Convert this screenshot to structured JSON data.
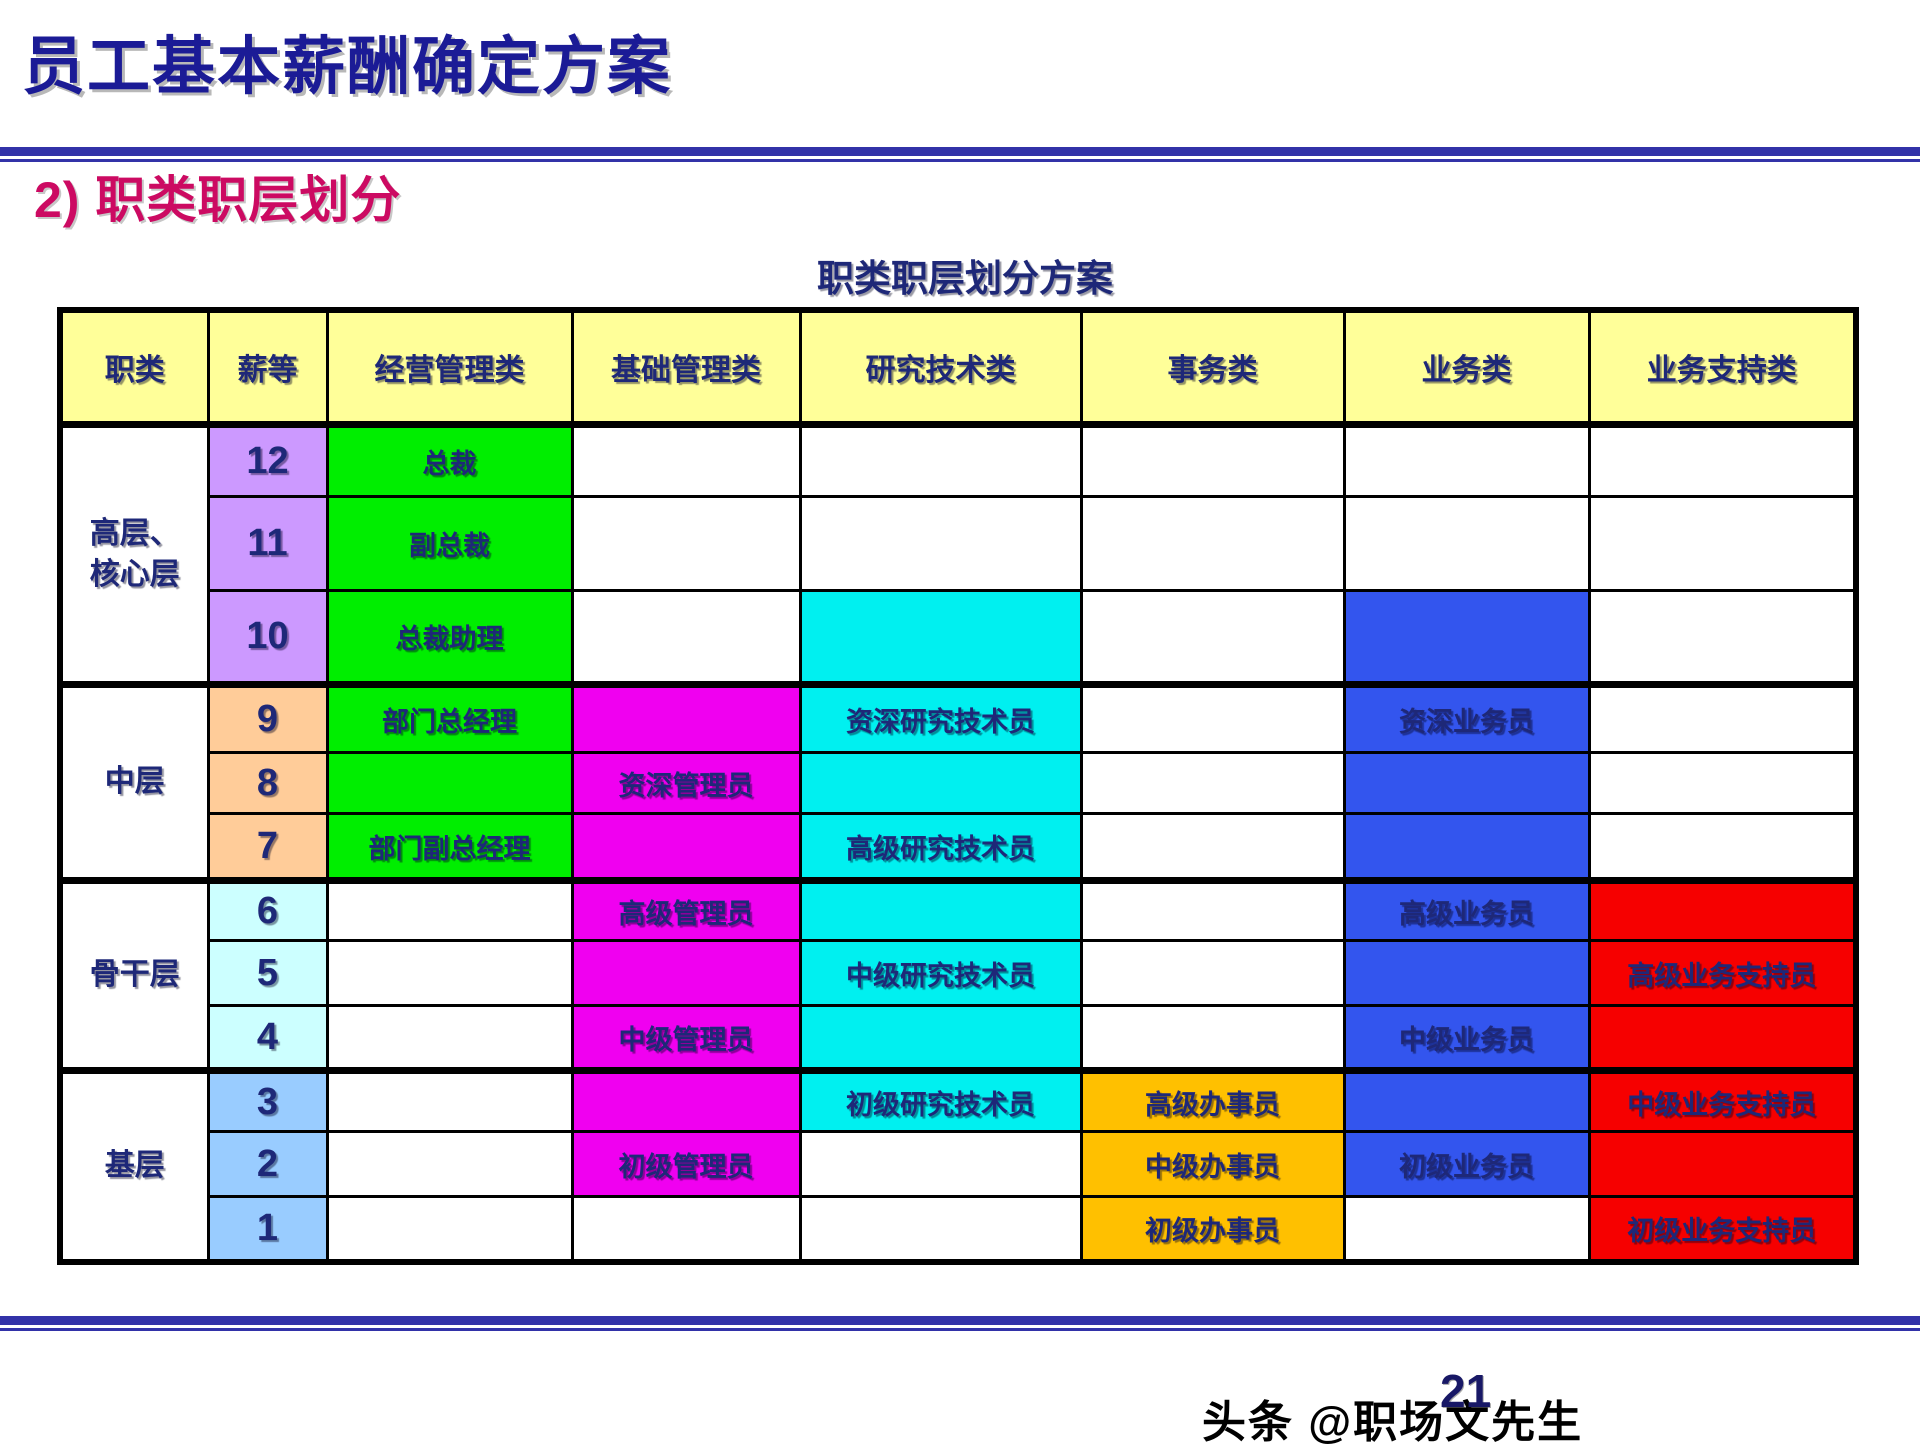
{
  "slide": {
    "title": "员工基本薪酬确定方案",
    "section_title": "2) 职类职层划分",
    "table_title": "职类职层划分方案",
    "page_number": "21",
    "watermark": "头条 @职场文先生"
  },
  "colors": {
    "title_navy": "#1B1B96",
    "section_crimson": "#CC0A62",
    "text_navy": "#1E2878",
    "line_navy": "#3232A8",
    "header_yellow": "#FFFF99",
    "grade_purple": "#CC99FF",
    "grade_peach": "#FFCC99",
    "grade_lightcyan": "#CCFFFF",
    "grade_lightblue": "#99CCFF",
    "green": "#00EE00",
    "magenta": "#F000F0",
    "cyan": "#00F0F0",
    "orange": "#FFC000",
    "blue": "#3355EE",
    "red": "#F60000",
    "white": "#FFFFFF",
    "watermark_black": "#000000",
    "page_number_navy": "#181866"
  },
  "table": {
    "columns": [
      {
        "key": "job-category",
        "label": "职类"
      },
      {
        "key": "salary-grade",
        "label": "薪等"
      },
      {
        "key": "mgmt",
        "label": "经营管理类"
      },
      {
        "key": "basic-mgmt",
        "label": "基础管理类"
      },
      {
        "key": "research-tech",
        "label": "研究技术类"
      },
      {
        "key": "affairs",
        "label": "事务类"
      },
      {
        "key": "business",
        "label": "业务类"
      },
      {
        "key": "business-support",
        "label": "业务支持类"
      }
    ],
    "groups": [
      {
        "id": "top-core",
        "label_lines": [
          "高层、",
          "核心层"
        ],
        "grade_bg": "grade_purple",
        "grades": [
          "12",
          "11",
          "10"
        ]
      },
      {
        "id": "middle",
        "label_lines": [
          "中层"
        ],
        "grade_bg": "grade_peach",
        "grades": [
          "9",
          "8",
          "7"
        ]
      },
      {
        "id": "backbone",
        "label_lines": [
          "骨干层"
        ],
        "grade_bg": "grade_lightcyan",
        "grades": [
          "6",
          "5",
          "4"
        ]
      },
      {
        "id": "base",
        "label_lines": [
          "基层"
        ],
        "grade_bg": "grade_lightblue",
        "grades": [
          "3",
          "2",
          "1"
        ]
      }
    ],
    "rows": [
      {
        "grade": "12",
        "cells": [
          {
            "bg": "green",
            "text": "总裁"
          },
          {
            "bg": "white",
            "text": ""
          },
          {
            "bg": "white",
            "text": ""
          },
          {
            "bg": "white",
            "text": ""
          },
          {
            "bg": "white",
            "text": ""
          },
          {
            "bg": "white",
            "text": ""
          }
        ]
      },
      {
        "grade": "11",
        "cells": [
          {
            "bg": "green",
            "text": "副总裁"
          },
          {
            "bg": "white",
            "text": ""
          },
          {
            "bg": "white",
            "text": ""
          },
          {
            "bg": "white",
            "text": ""
          },
          {
            "bg": "white",
            "text": ""
          },
          {
            "bg": "white",
            "text": ""
          }
        ]
      },
      {
        "grade": "10",
        "cells": [
          {
            "bg": "green",
            "text": "总裁助理"
          },
          {
            "bg": "white",
            "text": ""
          },
          {
            "bg": "cyan",
            "text": ""
          },
          {
            "bg": "white",
            "text": ""
          },
          {
            "bg": "blue",
            "text": ""
          },
          {
            "bg": "white",
            "text": ""
          }
        ]
      },
      {
        "grade": "9",
        "cells": [
          {
            "bg": "green",
            "text": "部门总经理"
          },
          {
            "bg": "magenta",
            "text": ""
          },
          {
            "bg": "cyan",
            "text": "资深研究技术员"
          },
          {
            "bg": "white",
            "text": ""
          },
          {
            "bg": "blue",
            "text": "资深业务员"
          },
          {
            "bg": "white",
            "text": ""
          }
        ]
      },
      {
        "grade": "8",
        "cells": [
          {
            "bg": "green",
            "text": ""
          },
          {
            "bg": "magenta",
            "text": "资深管理员"
          },
          {
            "bg": "cyan",
            "text": ""
          },
          {
            "bg": "white",
            "text": ""
          },
          {
            "bg": "blue",
            "text": ""
          },
          {
            "bg": "white",
            "text": ""
          }
        ]
      },
      {
        "grade": "7",
        "cells": [
          {
            "bg": "green",
            "text": "部门副总经理"
          },
          {
            "bg": "magenta",
            "text": ""
          },
          {
            "bg": "cyan",
            "text": "高级研究技术员"
          },
          {
            "bg": "white",
            "text": ""
          },
          {
            "bg": "blue",
            "text": ""
          },
          {
            "bg": "white",
            "text": ""
          }
        ]
      },
      {
        "grade": "6",
        "cells": [
          {
            "bg": "white",
            "text": ""
          },
          {
            "bg": "magenta",
            "text": "高级管理员"
          },
          {
            "bg": "cyan",
            "text": ""
          },
          {
            "bg": "white",
            "text": ""
          },
          {
            "bg": "blue",
            "text": "高级业务员"
          },
          {
            "bg": "red",
            "text": ""
          }
        ]
      },
      {
        "grade": "5",
        "cells": [
          {
            "bg": "white",
            "text": ""
          },
          {
            "bg": "magenta",
            "text": ""
          },
          {
            "bg": "cyan",
            "text": "中级研究技术员"
          },
          {
            "bg": "white",
            "text": ""
          },
          {
            "bg": "blue",
            "text": ""
          },
          {
            "bg": "red",
            "text": "高级业务支持员"
          }
        ]
      },
      {
        "grade": "4",
        "cells": [
          {
            "bg": "white",
            "text": ""
          },
          {
            "bg": "magenta",
            "text": "中级管理员"
          },
          {
            "bg": "cyan",
            "text": ""
          },
          {
            "bg": "white",
            "text": ""
          },
          {
            "bg": "blue",
            "text": "中级业务员"
          },
          {
            "bg": "red",
            "text": ""
          }
        ]
      },
      {
        "grade": "3",
        "cells": [
          {
            "bg": "white",
            "text": ""
          },
          {
            "bg": "magenta",
            "text": ""
          },
          {
            "bg": "cyan",
            "text": "初级研究技术员"
          },
          {
            "bg": "orange",
            "text": "高级办事员"
          },
          {
            "bg": "blue",
            "text": ""
          },
          {
            "bg": "red",
            "text": "中级业务支持员"
          }
        ]
      },
      {
        "grade": "2",
        "cells": [
          {
            "bg": "white",
            "text": ""
          },
          {
            "bg": "magenta",
            "text": "初级管理员"
          },
          {
            "bg": "white",
            "text": ""
          },
          {
            "bg": "orange",
            "text": "中级办事员"
          },
          {
            "bg": "blue",
            "text": "初级业务员"
          },
          {
            "bg": "red",
            "text": ""
          }
        ]
      },
      {
        "grade": "1",
        "cells": [
          {
            "bg": "white",
            "text": ""
          },
          {
            "bg": "white",
            "text": ""
          },
          {
            "bg": "white",
            "text": ""
          },
          {
            "bg": "orange",
            "text": "初级办事员"
          },
          {
            "bg": "white",
            "text": ""
          },
          {
            "bg": "red",
            "text": "初级业务支持员"
          }
        ]
      }
    ]
  }
}
